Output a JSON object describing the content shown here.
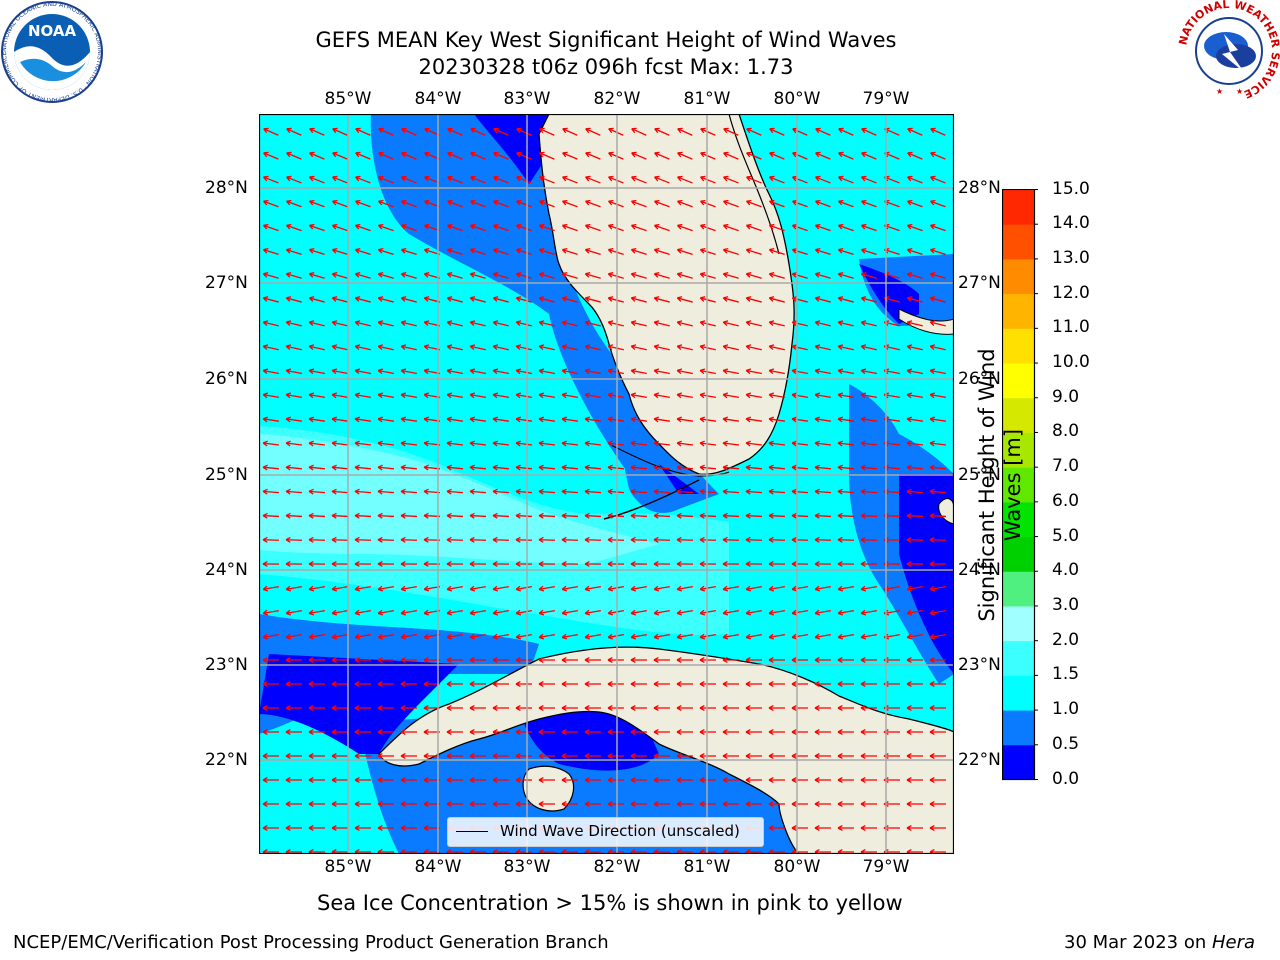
{
  "title_line1": "GEFS MEAN Key West Significant Height of Wind Waves",
  "title_line2": "20230328 t06z 096h fcst   Max: 1.73",
  "lon_labels": [
    "85°W",
    "84°W",
    "83°W",
    "82°W",
    "81°W",
    "80°W",
    "79°W"
  ],
  "lat_labels": [
    "28°N",
    "27°N",
    "26°N",
    "25°N",
    "24°N",
    "23°N",
    "22°N"
  ],
  "colorbar": {
    "title_line1": "Significant Height of Wind",
    "title_line2": "Waves [m]",
    "ticks": [
      "0.0",
      "0.5",
      "1.0",
      "1.5",
      "2.0",
      "3.0",
      "4.0",
      "5.0",
      "6.0",
      "7.0",
      "8.0",
      "9.0",
      "10.0",
      "11.0",
      "12.0",
      "13.0",
      "14.0",
      "15.0"
    ],
    "colors": [
      "#0000ff",
      "#0a7bff",
      "#00ffff",
      "#3cffff",
      "#a0ffff",
      "#50f080",
      "#00d000",
      "#00e400",
      "#60e800",
      "#a8e800",
      "#d4e800",
      "#ffff00",
      "#ffe000",
      "#ffb400",
      "#ff8c00",
      "#ff5000",
      "#ff2800"
    ]
  },
  "legend_label": "Wind Wave Direction (unscaled)",
  "sea_ice_note": "Sea Ice Concentration > 15% is shown in pink to yellow",
  "footer_left": "NCEP/EMC/Verification Post Processing Product Generation Branch",
  "footer_right_date": "30 Mar 2023 on ",
  "footer_right_host": "Hera",
  "logos": {
    "noaa_text": "NOAA",
    "noaa_ring": "NATIONAL OCEANIC AND ATMOSPHERIC ADMINISTRATION · U.S. DEPARTMENT OF COMMERCE",
    "nws_ring": "NATIONAL WEATHER SERVICE"
  },
  "colors": {
    "land": "#efedde",
    "arrow": "#ff0000",
    "grid": "#aaaaaa"
  }
}
